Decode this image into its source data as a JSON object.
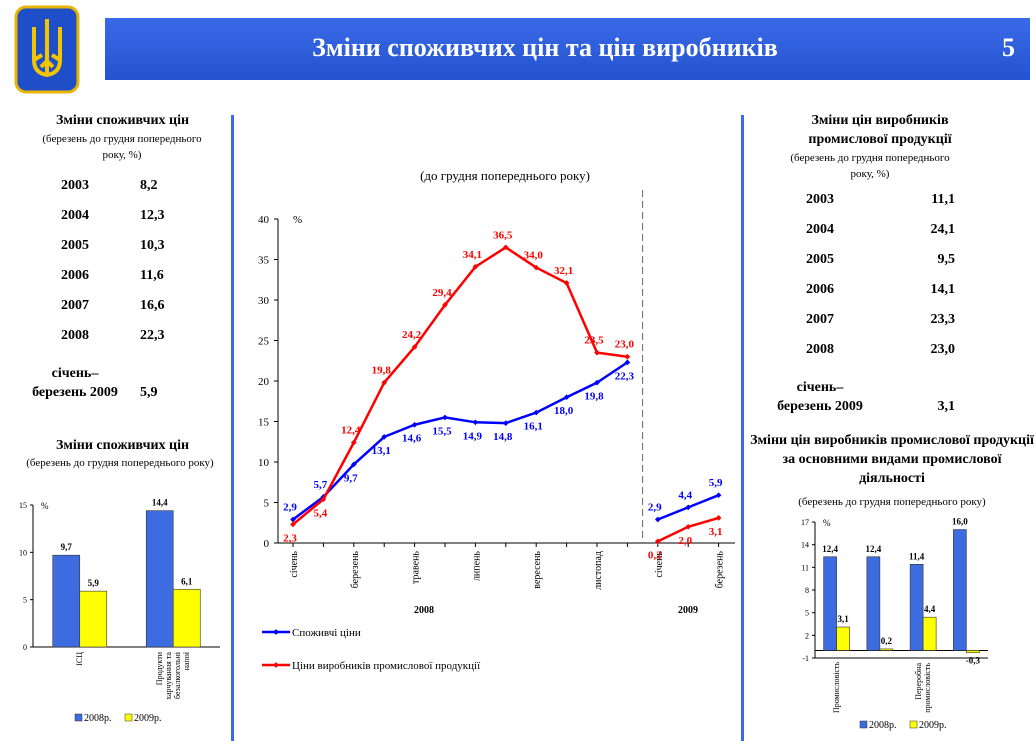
{
  "header": {
    "title": "Зміни споживчих цін та цін виробників",
    "page": "5"
  },
  "cpi_table": {
    "title": "Зміни споживчих цін",
    "subtitle": "(березень до грудня попереднього року, %)",
    "rows": [
      [
        "2003",
        "8,2"
      ],
      [
        "2004",
        "12,3"
      ],
      [
        "2005",
        "10,3"
      ],
      [
        "2006",
        "11,6"
      ],
      [
        "2007",
        "16,6"
      ],
      [
        "2008",
        "22,3"
      ],
      [
        "січень– березень 2009",
        "5,9"
      ]
    ]
  },
  "ppi_table": {
    "title": "Зміни цін виробників промислової продукції",
    "subtitle": "(березень до грудня попереднього року, %)",
    "rows": [
      [
        "2003",
        "11,1"
      ],
      [
        "2004",
        "24,1"
      ],
      [
        "2005",
        "9,5"
      ],
      [
        "2006",
        "14,1"
      ],
      [
        "2007",
        "23,3"
      ],
      [
        "2008",
        "23,0"
      ],
      [
        "січень– березень 2009",
        "3,1"
      ]
    ]
  },
  "chart_data": [
    {
      "type": "line",
      "subtitle": "(до грудня попереднього року)",
      "unit": "%",
      "categories": [
        "січень",
        null,
        "березень",
        null,
        "травень",
        null,
        "липень",
        null,
        "вересень",
        null,
        "листопад",
        null,
        "січень",
        null,
        "березень"
      ],
      "year_labels": [
        "2008",
        "2009"
      ],
      "series": [
        {
          "name": "Споживчі ціни",
          "color": "#0000ff",
          "values": [
            2.9,
            5.7,
            9.7,
            13.1,
            14.6,
            15.5,
            14.9,
            14.8,
            16.1,
            18.0,
            19.8,
            22.3,
            2.9,
            4.4,
            5.9
          ],
          "value_labels": [
            "2,9",
            "5,7",
            "9,7",
            "13,1",
            "14,6",
            "15,5",
            "14,9",
            "14,8",
            "16,1",
            "18,0",
            "19,8",
            "22,3",
            "2,9",
            "4,4",
            "5,9"
          ]
        },
        {
          "name": "Ціни виробників промислової продукції",
          "color": "#ff0000",
          "values": [
            2.3,
            5.4,
            12.4,
            19.8,
            24.2,
            29.4,
            34.1,
            36.5,
            34.0,
            32.1,
            23.5,
            23.0,
            0.2,
            2.0,
            3.1
          ],
          "value_labels": [
            "2,3",
            "5,4",
            "12,4",
            "19,8",
            "24,2",
            "29,4",
            "34,1",
            "36,5",
            "34,0",
            "32,1",
            "23,5",
            "23,0",
            "0,2",
            "2,0",
            "3,1"
          ]
        }
      ],
      "ylim": [
        0,
        40
      ],
      "yticks": [
        0,
        5,
        10,
        15,
        20,
        25,
        30,
        35,
        40
      ]
    },
    {
      "type": "bar",
      "title": "Зміни споживчих цін",
      "subtitle": "(березень до грудня попереднього року)",
      "unit": "%",
      "categories": [
        "ІСЦ",
        "Продукти харчування та безалкогольні напої"
      ],
      "series": [
        {
          "name": "2008р.",
          "color": "#3d6be0",
          "values": [
            9.7,
            14.4
          ],
          "value_labels": [
            "9,7",
            "14,4"
          ]
        },
        {
          "name": "2009р.",
          "color": "#ffff00",
          "values": [
            5.9,
            6.1
          ],
          "value_labels": [
            "5,9",
            "6,1"
          ]
        }
      ],
      "ylim": [
        0,
        15
      ],
      "yticks": [
        0,
        5,
        10,
        15
      ]
    },
    {
      "type": "bar",
      "title": "Зміни цін виробників промислової продукції за основними видами промислової діяльності",
      "subtitle": "(березень до грудня попереднього року)",
      "unit": "%",
      "categories": [
        "Промисловість",
        null,
        "Переробна промисловість",
        null
      ],
      "series": [
        {
          "name": "2008р.",
          "color": "#3d6be0",
          "values": [
            12.4,
            12.4,
            11.4,
            16.0
          ],
          "value_labels": [
            "12,4",
            "12,4",
            "11,4",
            "16,0"
          ]
        },
        {
          "name": "2009р.",
          "color": "#ffff00",
          "values": [
            3.1,
            0.2,
            4.4,
            -0.3
          ],
          "value_labels": [
            "3,1",
            "0,2",
            "4,4",
            "-0,3"
          ]
        }
      ],
      "ylim": [
        -1,
        17
      ],
      "yticks": [
        -1,
        2,
        5,
        8,
        11,
        14,
        17
      ]
    }
  ]
}
